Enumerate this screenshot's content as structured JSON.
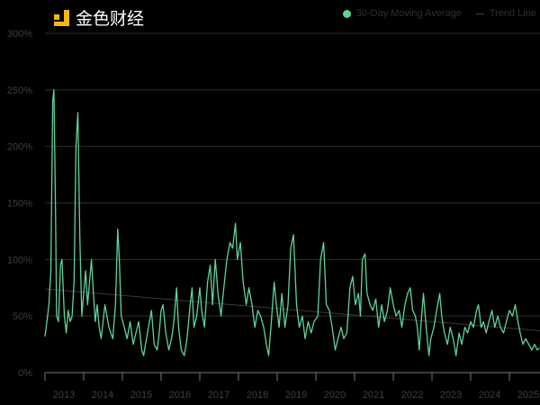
{
  "chart_data": {
    "type": "line",
    "title": "",
    "xlabel": "",
    "ylabel": "",
    "ylim": [
      0,
      300
    ],
    "xlim": [
      2013.0,
      2025.8
    ],
    "y_ticks": [
      "0%",
      "50%",
      "100%",
      "150%",
      "200%",
      "250%",
      "300%"
    ],
    "y_tick_values": [
      0,
      50,
      100,
      150,
      200,
      250,
      300
    ],
    "x_ticks": [
      "2013",
      "2014",
      "2015",
      "2016",
      "2017",
      "2018",
      "2019",
      "2020",
      "2021",
      "2022",
      "2023",
      "2024",
      "2025"
    ],
    "grid": "horizontal",
    "legend_placement": "top-right",
    "legend": [
      "30-Day Moving Average",
      "Trend Line"
    ],
    "colors": {
      "series": "#5fd39a",
      "trend": "#3a3a3a",
      "grid": "#2e2e2e",
      "axis": "#777777",
      "tick_text": "#3a3f4a"
    },
    "series": [
      {
        "name": "30-Day Moving Average",
        "points": [
          [
            2013.0,
            32
          ],
          [
            2013.05,
            45
          ],
          [
            2013.1,
            60
          ],
          [
            2013.15,
            90
          ],
          [
            2013.2,
            240
          ],
          [
            2013.23,
            250
          ],
          [
            2013.27,
            150
          ],
          [
            2013.3,
            50
          ],
          [
            2013.35,
            45
          ],
          [
            2013.4,
            95
          ],
          [
            2013.44,
            100
          ],
          [
            2013.5,
            50
          ],
          [
            2013.55,
            35
          ],
          [
            2013.6,
            55
          ],
          [
            2013.65,
            45
          ],
          [
            2013.7,
            50
          ],
          [
            2013.75,
            80
          ],
          [
            2013.8,
            200
          ],
          [
            2013.85,
            230
          ],
          [
            2013.9,
            120
          ],
          [
            2013.95,
            50
          ],
          [
            2014.0,
            70
          ],
          [
            2014.05,
            90
          ],
          [
            2014.1,
            60
          ],
          [
            2014.15,
            80
          ],
          [
            2014.2,
            100
          ],
          [
            2014.25,
            70
          ],
          [
            2014.3,
            45
          ],
          [
            2014.35,
            60
          ],
          [
            2014.4,
            40
          ],
          [
            2014.45,
            30
          ],
          [
            2014.5,
            45
          ],
          [
            2014.55,
            60
          ],
          [
            2014.6,
            50
          ],
          [
            2014.65,
            40
          ],
          [
            2014.75,
            30
          ],
          [
            2014.82,
            60
          ],
          [
            2014.88,
            127
          ],
          [
            2014.92,
            100
          ],
          [
            2014.97,
            50
          ],
          [
            2015.05,
            40
          ],
          [
            2015.12,
            30
          ],
          [
            2015.2,
            45
          ],
          [
            2015.28,
            25
          ],
          [
            2015.35,
            35
          ],
          [
            2015.42,
            45
          ],
          [
            2015.5,
            20
          ],
          [
            2015.55,
            15
          ],
          [
            2015.62,
            30
          ],
          [
            2015.7,
            45
          ],
          [
            2015.75,
            55
          ],
          [
            2015.82,
            25
          ],
          [
            2015.9,
            20
          ],
          [
            2015.95,
            35
          ],
          [
            2016.0,
            55
          ],
          [
            2016.05,
            60
          ],
          [
            2016.12,
            35
          ],
          [
            2016.2,
            20
          ],
          [
            2016.27,
            30
          ],
          [
            2016.33,
            45
          ],
          [
            2016.4,
            75
          ],
          [
            2016.45,
            40
          ],
          [
            2016.52,
            20
          ],
          [
            2016.6,
            15
          ],
          [
            2016.67,
            30
          ],
          [
            2016.75,
            60
          ],
          [
            2016.8,
            75
          ],
          [
            2016.85,
            40
          ],
          [
            2016.92,
            50
          ],
          [
            2017.0,
            75
          ],
          [
            2017.05,
            55
          ],
          [
            2017.12,
            40
          ],
          [
            2017.2,
            80
          ],
          [
            2017.27,
            95
          ],
          [
            2017.33,
            60
          ],
          [
            2017.4,
            100
          ],
          [
            2017.47,
            70
          ],
          [
            2017.55,
            50
          ],
          [
            2017.62,
            75
          ],
          [
            2017.7,
            100
          ],
          [
            2017.78,
            115
          ],
          [
            2017.85,
            110
          ],
          [
            2017.92,
            132
          ],
          [
            2017.97,
            100
          ],
          [
            2018.05,
            115
          ],
          [
            2018.12,
            80
          ],
          [
            2018.2,
            60
          ],
          [
            2018.27,
            75
          ],
          [
            2018.35,
            60
          ],
          [
            2018.42,
            40
          ],
          [
            2018.5,
            55
          ],
          [
            2018.57,
            50
          ],
          [
            2018.65,
            40
          ],
          [
            2018.72,
            25
          ],
          [
            2018.78,
            15
          ],
          [
            2018.85,
            45
          ],
          [
            2018.92,
            80
          ],
          [
            2018.98,
            60
          ],
          [
            2019.05,
            40
          ],
          [
            2019.12,
            70
          ],
          [
            2019.2,
            40
          ],
          [
            2019.28,
            60
          ],
          [
            2019.35,
            110
          ],
          [
            2019.42,
            122
          ],
          [
            2019.5,
            60
          ],
          [
            2019.57,
            40
          ],
          [
            2019.65,
            50
          ],
          [
            2019.72,
            30
          ],
          [
            2019.8,
            45
          ],
          [
            2019.88,
            35
          ],
          [
            2019.95,
            45
          ],
          [
            2020.05,
            50
          ],
          [
            2020.12,
            100
          ],
          [
            2020.2,
            115
          ],
          [
            2020.27,
            60
          ],
          [
            2020.35,
            55
          ],
          [
            2020.42,
            40
          ],
          [
            2020.5,
            20
          ],
          [
            2020.57,
            30
          ],
          [
            2020.65,
            40
          ],
          [
            2020.72,
            30
          ],
          [
            2020.8,
            35
          ],
          [
            2020.88,
            75
          ],
          [
            2020.95,
            85
          ],
          [
            2021.02,
            60
          ],
          [
            2021.1,
            70
          ],
          [
            2021.15,
            50
          ],
          [
            2021.2,
            100
          ],
          [
            2021.27,
            105
          ],
          [
            2021.32,
            70
          ],
          [
            2021.4,
            60
          ],
          [
            2021.47,
            55
          ],
          [
            2021.55,
            65
          ],
          [
            2021.62,
            40
          ],
          [
            2021.7,
            60
          ],
          [
            2021.77,
            45
          ],
          [
            2021.85,
            55
          ],
          [
            2021.92,
            75
          ],
          [
            2022.0,
            60
          ],
          [
            2022.07,
            50
          ],
          [
            2022.15,
            55
          ],
          [
            2022.22,
            40
          ],
          [
            2022.3,
            60
          ],
          [
            2022.37,
            70
          ],
          [
            2022.44,
            75
          ],
          [
            2022.5,
            55
          ],
          [
            2022.57,
            50
          ],
          [
            2022.62,
            40
          ],
          [
            2022.67,
            20
          ],
          [
            2022.72,
            45
          ],
          [
            2022.78,
            70
          ],
          [
            2022.85,
            40
          ],
          [
            2022.92,
            15
          ],
          [
            2022.97,
            30
          ],
          [
            2023.05,
            40
          ],
          [
            2023.12,
            55
          ],
          [
            2023.2,
            70
          ],
          [
            2023.25,
            50
          ],
          [
            2023.32,
            35
          ],
          [
            2023.4,
            25
          ],
          [
            2023.47,
            40
          ],
          [
            2023.55,
            30
          ],
          [
            2023.62,
            15
          ],
          [
            2023.7,
            35
          ],
          [
            2023.77,
            25
          ],
          [
            2023.85,
            40
          ],
          [
            2023.92,
            35
          ],
          [
            2024.0,
            45
          ],
          [
            2024.07,
            40
          ],
          [
            2024.15,
            55
          ],
          [
            2024.2,
            60
          ],
          [
            2024.27,
            40
          ],
          [
            2024.33,
            45
          ],
          [
            2024.4,
            35
          ],
          [
            2024.47,
            45
          ],
          [
            2024.55,
            55
          ],
          [
            2024.62,
            40
          ],
          [
            2024.7,
            50
          ],
          [
            2024.77,
            40
          ],
          [
            2024.85,
            35
          ],
          [
            2024.92,
            45
          ],
          [
            2025.0,
            55
          ],
          [
            2025.08,
            50
          ],
          [
            2025.15,
            60
          ],
          [
            2025.22,
            45
          ],
          [
            2025.28,
            35
          ],
          [
            2025.35,
            25
          ],
          [
            2025.42,
            30
          ],
          [
            2025.5,
            25
          ],
          [
            2025.58,
            20
          ],
          [
            2025.65,
            25
          ],
          [
            2025.72,
            20
          ],
          [
            2025.78,
            22
          ]
        ]
      },
      {
        "name": "Trend Line",
        "points": [
          [
            2013.0,
            74
          ],
          [
            2025.8,
            37
          ]
        ]
      }
    ]
  },
  "watermark": {
    "text": "金色财经"
  }
}
